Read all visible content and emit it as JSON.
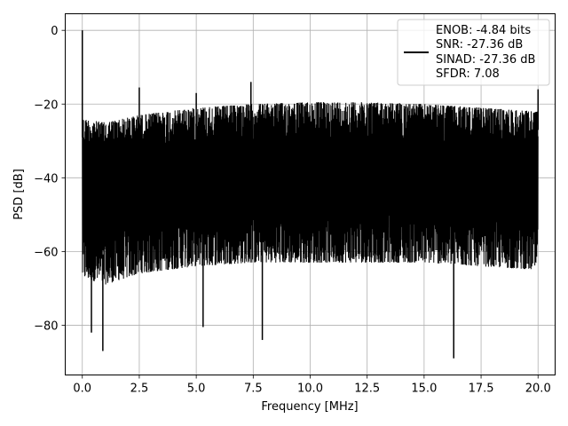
{
  "chart_data": {
    "type": "line",
    "xlabel": "Frequency [MHz]",
    "ylabel": "PSD [dB]",
    "xlim": [
      -0.75,
      20.75
    ],
    "ylim": [
      -93.5,
      4.5
    ],
    "xticks": [
      0.0,
      2.5,
      5.0,
      7.5,
      10.0,
      12.5,
      15.0,
      17.5,
      20.0
    ],
    "xtick_labels": [
      "0.0",
      "2.5",
      "5.0",
      "7.5",
      "10.0",
      "12.5",
      "15.0",
      "17.5",
      "20.0"
    ],
    "yticks": [
      0,
      -20,
      -40,
      -60,
      -80
    ],
    "ytick_labels": [
      "0",
      "−20",
      "−40",
      "−60",
      "−80"
    ],
    "grid": true,
    "legend_position": "upper-right",
    "series": [
      {
        "name": "",
        "color": "#000000",
        "legend_lines": [
          "ENOB: -4.84 bits",
          "SNR: -27.36 dB",
          "SINAD: -27.36 dB",
          "SFDR: 7.08"
        ],
        "x_range": [
          0.0,
          20.0
        ],
        "noise_floor_upper_envelope_db": [
          [
            0.0,
            -24
          ],
          [
            1.0,
            -25
          ],
          [
            2.5,
            -23
          ],
          [
            5.0,
            -21
          ],
          [
            7.5,
            -20
          ],
          [
            10.0,
            -19.5
          ],
          [
            12.5,
            -19.5
          ],
          [
            15.0,
            -20
          ],
          [
            17.5,
            -21
          ],
          [
            20.0,
            -22
          ]
        ],
        "noise_floor_lower_envelope_db": [
          [
            0.0,
            -64
          ],
          [
            1.0,
            -66
          ],
          [
            2.5,
            -63
          ],
          [
            5.0,
            -61
          ],
          [
            7.5,
            -60
          ],
          [
            10.0,
            -60
          ],
          [
            12.5,
            -60
          ],
          [
            15.0,
            -60
          ],
          [
            17.5,
            -61
          ],
          [
            20.0,
            -62
          ]
        ],
        "peaks": [
          {
            "x": 0.0,
            "y": 0
          },
          {
            "x": 2.5,
            "y": -15.5
          },
          {
            "x": 5.0,
            "y": -17
          },
          {
            "x": 7.4,
            "y": -14
          },
          {
            "x": 20.0,
            "y": -16
          }
        ],
        "dips": [
          {
            "x": 0.4,
            "y": -82
          },
          {
            "x": 0.9,
            "y": -87
          },
          {
            "x": 5.3,
            "y": -80.5
          },
          {
            "x": 7.9,
            "y": -84
          },
          {
            "x": 16.3,
            "y": -89
          }
        ]
      }
    ]
  }
}
